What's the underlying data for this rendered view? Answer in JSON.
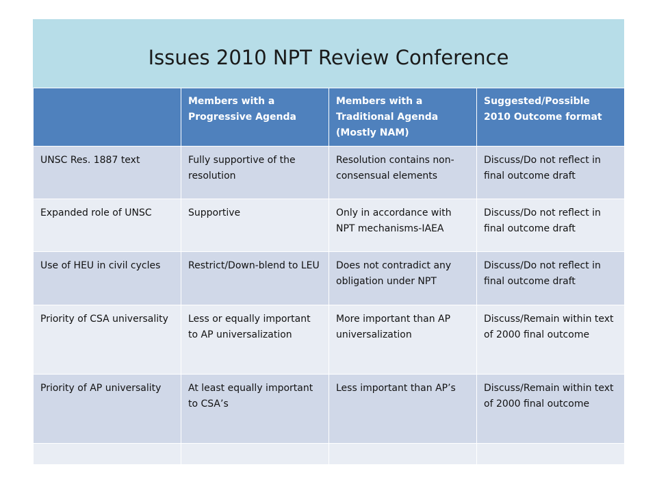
{
  "slide": {
    "title": "Issues 2010 NPT Review Conference"
  },
  "colors": {
    "title_band": "#b7dde8",
    "header_fill": "#4f81bd",
    "row_dark": "#d0d8e8",
    "row_light": "#e9edf4"
  },
  "table": {
    "headers": [
      "",
      "Members with a Progressive Agenda",
      "Members with a Traditional  Agenda (Mostly NAM)",
      "Suggested/Possible 2010 Outcome format"
    ],
    "rows": [
      [
        "UNSC Res. 1887 text",
        "Fully supportive of the resolution",
        "Resolution contains non-consensual elements",
        "Discuss/Do not reflect in final outcome draft"
      ],
      [
        "Expanded role of UNSC",
        "Supportive",
        "Only in accordance with NPT mechanisms-IAEA",
        "Discuss/Do not reflect in final outcome draft"
      ],
      [
        "Use of HEU in civil cycles",
        "Restrict/Down-blend to LEU",
        "Does not contradict any obligation under NPT",
        "Discuss/Do not reflect in final outcome draft"
      ],
      [
        "Priority of CSA universality",
        "Less  or equally important to AP universalization",
        "More important than AP universalization",
        "Discuss/Remain within text of 2000 final outcome"
      ],
      [
        "Priority of AP universality",
        "At least equally important to CSA’s",
        "Less important than AP’s",
        "Discuss/Remain within text of 2000 final outcome"
      ],
      [
        "",
        "",
        "",
        ""
      ]
    ]
  }
}
